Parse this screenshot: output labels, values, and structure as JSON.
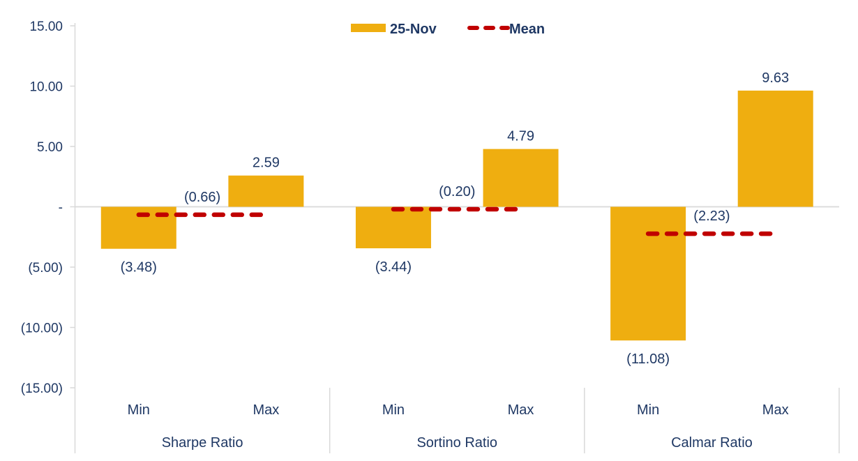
{
  "chart_data": {
    "type": "bar",
    "title": "",
    "legend": [
      {
        "label": "25-Nov",
        "swatch": "bar-swatch",
        "color": "#EFAE10"
      },
      {
        "label": "Mean",
        "swatch": "dashed-line-swatch",
        "color": "#C00000"
      }
    ],
    "legend_position": "top-center",
    "y_axis": {
      "min": -15,
      "max": 15,
      "number_format": "accounting",
      "ticks": [
        {
          "value": 15,
          "label": "15.00"
        },
        {
          "value": 10,
          "label": "10.00"
        },
        {
          "value": 5,
          "label": "5.00"
        },
        {
          "value": 0,
          "label": "-"
        },
        {
          "value": -5,
          "label": "(5.00)"
        },
        {
          "value": -10,
          "label": "(10.00)"
        },
        {
          "value": -15,
          "label": "(15.00)"
        }
      ]
    },
    "bar_categories": [
      "Min",
      "Max"
    ],
    "groups": [
      {
        "label": "Sharpe Ratio",
        "min_value": -3.48,
        "min_label": "(3.48)",
        "max_value": 2.59,
        "max_label": "2.59",
        "mean_value": -0.66,
        "mean_label": "(0.66)"
      },
      {
        "label": "Sortino Ratio",
        "min_value": -3.44,
        "min_label": "(3.44)",
        "max_value": 4.79,
        "max_label": "4.79",
        "mean_value": -0.2,
        "mean_label": "(0.20)"
      },
      {
        "label": "Calmar Ratio",
        "min_value": -11.08,
        "min_label": "(11.08)",
        "max_value": 9.63,
        "max_label": "9.63",
        "mean_value": -2.23,
        "mean_label": "(2.23)"
      }
    ],
    "colors": {
      "bar": "#EFAE10",
      "mean": "#C00000",
      "text": "#1F3864",
      "axis": "#D9D9D9"
    },
    "grid": "zero-line-only"
  }
}
